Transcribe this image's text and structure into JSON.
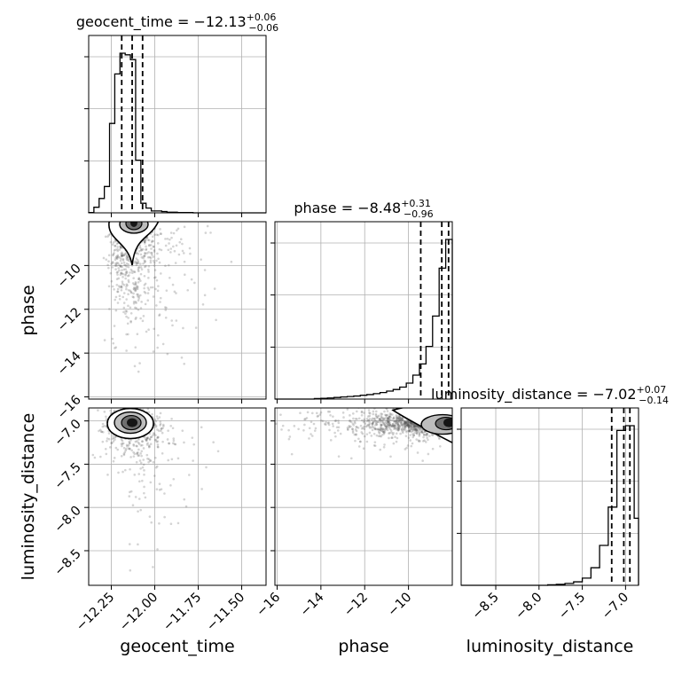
{
  "chart_data": {
    "type": "corner",
    "parameters": [
      {
        "name": "geocent_time",
        "xlabel": "geocent_time",
        "range": [
          -12.38,
          -11.36
        ],
        "ticks": [
          -12.25,
          -12.0,
          -11.75,
          -11.5
        ],
        "tick_labels": [
          "−12.25",
          "−12.00",
          "−11.75",
          "−11.50"
        ],
        "title": {
          "text": "geocent_time = −12.13",
          "sup": "+0.06",
          "sub": "−0.06"
        },
        "quantiles": [
          -12.19,
          -12.13,
          -12.07
        ],
        "hist": {
          "edges": [
            -12.38,
            -12.35,
            -12.32,
            -12.29,
            -12.26,
            -12.23,
            -12.2,
            -12.17,
            -12.14,
            -12.11,
            -12.08,
            -12.05,
            -12.02,
            -11.99,
            -11.96,
            -11.93,
            -11.9,
            -11.87,
            -11.84,
            -11.81,
            -11.78,
            -11.75,
            -11.72,
            -11.69,
            -11.66,
            -11.63,
            -11.6,
            -11.57,
            -11.54,
            -11.51,
            -11.48,
            -11.45,
            -11.42,
            -11.39,
            -11.36
          ],
          "counts": [
            0.002,
            0.035,
            0.09,
            0.165,
            0.56,
            0.87,
            1.0,
            0.99,
            0.96,
            0.33,
            0.06,
            0.03,
            0.012,
            0.012,
            0.008,
            0.004,
            0.004,
            0.002,
            0.002,
            0.002,
            0,
            0,
            0,
            0,
            0,
            0,
            0,
            0,
            0,
            0,
            0,
            0,
            0,
            0
          ]
        }
      },
      {
        "name": "phase",
        "xlabel": "phase",
        "ylabel": "phase",
        "range": [
          -16.1,
          -8.0
        ],
        "ticks": [
          -16,
          -14,
          -12,
          -10
        ],
        "tick_labels": [
          "−16",
          "−14",
          "−12",
          "−10"
        ],
        "title": {
          "text": "phase = −8.48",
          "sup": "+0.31",
          "sub": "−0.96"
        },
        "quantiles": [
          -9.44,
          -8.48,
          -8.17
        ],
        "hist": {
          "edges": [
            -16.1,
            -15.8,
            -15.5,
            -15.2,
            -14.9,
            -14.6,
            -14.3,
            -14.0,
            -13.7,
            -13.4,
            -13.1,
            -12.8,
            -12.5,
            -12.2,
            -11.9,
            -11.6,
            -11.3,
            -11.0,
            -10.7,
            -10.4,
            -10.1,
            -9.8,
            -9.5,
            -9.2,
            -8.9,
            -8.6,
            -8.3,
            -8.0
          ],
          "counts": [
            0,
            0,
            0,
            0,
            0,
            0,
            0.003,
            0.005,
            0.007,
            0.01,
            0.013,
            0.016,
            0.019,
            0.024,
            0.028,
            0.034,
            0.041,
            0.05,
            0.06,
            0.075,
            0.1,
            0.15,
            0.22,
            0.33,
            0.52,
            0.82,
            1.0
          ]
        }
      },
      {
        "name": "luminosity_distance",
        "xlabel": "luminosity_distance",
        "ylabel": "luminosity_distance",
        "range": [
          -8.9,
          -6.85
        ],
        "ticks": [
          -8.5,
          -8.0,
          -7.5,
          -7.0
        ],
        "tick_labels": [
          "−8.5",
          "−8.0",
          "−7.5",
          "−7.0"
        ],
        "title": {
          "text": "luminosity_distance = −7.02",
          "sup": "+0.07",
          "sub": "−0.14"
        },
        "quantiles": [
          -7.16,
          -7.02,
          -6.95
        ],
        "hist": {
          "edges": [
            -8.9,
            -8.8,
            -8.7,
            -8.6,
            -8.5,
            -8.4,
            -8.3,
            -8.2,
            -8.1,
            -8.0,
            -7.9,
            -7.8,
            -7.7,
            -7.6,
            -7.5,
            -7.4,
            -7.3,
            -7.2,
            -7.1,
            -7.0,
            -6.9,
            -6.85
          ],
          "counts": [
            0,
            0,
            0,
            0,
            0,
            0,
            0,
            0,
            0,
            0,
            0.003,
            0.006,
            0.012,
            0.022,
            0.045,
            0.11,
            0.25,
            0.49,
            0.97,
            1.0,
            0.42
          ]
        }
      }
    ],
    "pairs": [
      {
        "x": "geocent_time",
        "y": "phase",
        "mode": [
          -12.12,
          -8.2
        ]
      },
      {
        "x": "geocent_time",
        "y": "luminosity_distance",
        "mode": [
          -12.13,
          -7.02
        ]
      },
      {
        "x": "phase",
        "y": "luminosity_distance",
        "mode": [
          -8.2,
          -7.02
        ]
      }
    ],
    "grid": true
  }
}
